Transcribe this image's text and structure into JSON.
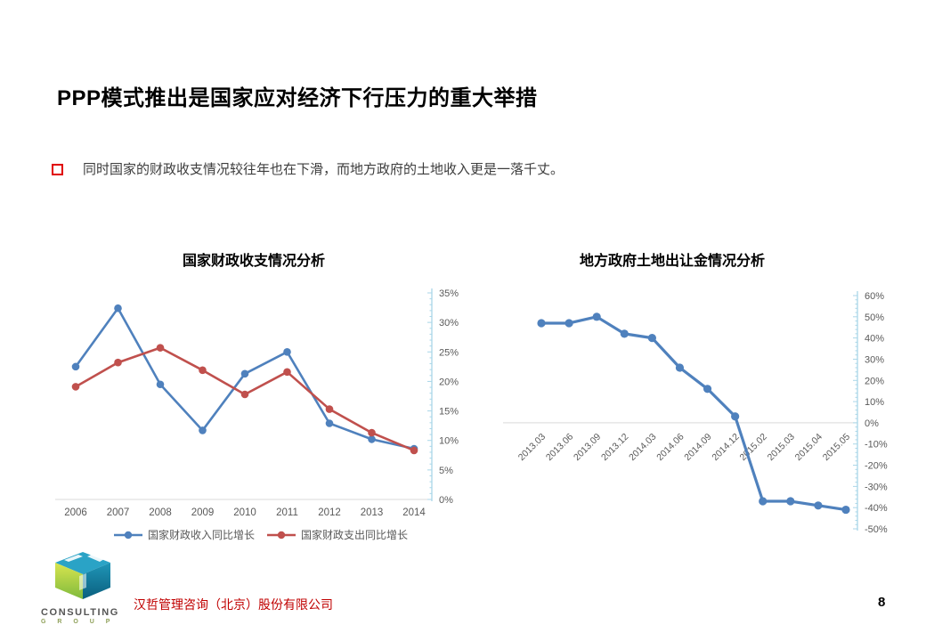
{
  "slide": {
    "title": "PPP模式推出是国家应对经济下行压力的重大举措",
    "bullet": "同时国家的财政收支情况较往年也在下滑，而地方政府的土地收入更是一落千丈。",
    "page_number": "8"
  },
  "footer": {
    "logo_line1": "CONSULTING",
    "logo_line2": "G R O U P",
    "company": "汉哲管理咨询（北京）股份有限公司"
  },
  "colors": {
    "series_blue": "#4F81BD",
    "series_red": "#C0504D",
    "axis_line": "#A9D6E8",
    "tick_label": "#595959",
    "gridline": "#D9D9D9"
  },
  "chart_data": [
    {
      "type": "line",
      "title": "国家财政收支情况分析",
      "categories": [
        "2006",
        "2007",
        "2008",
        "2009",
        "2010",
        "2011",
        "2012",
        "2013",
        "2014"
      ],
      "series": [
        {
          "name": "国家财政收入同比增长",
          "color": "#4F81BD",
          "values": [
            22.5,
            32.4,
            19.5,
            11.7,
            21.3,
            25.0,
            12.9,
            10.2,
            8.6
          ]
        },
        {
          "name": "国家财政支出同比增长",
          "color": "#C0504D",
          "values": [
            19.1,
            23.2,
            25.7,
            21.9,
            17.8,
            21.6,
            15.3,
            11.3,
            8.3
          ]
        }
      ],
      "xlabel": "",
      "ylabel": "",
      "ylim": [
        0,
        35
      ],
      "ytick_step": 5,
      "yticks": [
        "0%",
        "5%",
        "10%",
        "15%",
        "20%",
        "25%",
        "30%",
        "35%"
      ],
      "yaxis_side": "right",
      "legend_position": "bottom",
      "grid": false
    },
    {
      "type": "line",
      "title": "地方政府土地出让金情况分析",
      "categories": [
        "2013.03",
        "2013.06",
        "2013.09",
        "2013.12",
        "2014.03",
        "2014.06",
        "2014.09",
        "2014.12",
        "2015.02",
        "2015.03",
        "2015.04",
        "2015.05"
      ],
      "series": [
        {
          "color": "#4F81BD",
          "values": [
            47,
            47,
            50,
            42,
            40,
            26,
            16,
            3,
            -37,
            -37,
            -39,
            -41
          ]
        }
      ],
      "xlabel": "",
      "ylabel": "",
      "ylim": [
        -50,
        60
      ],
      "ytick_step": 10,
      "yticks": [
        "-50%",
        "-40%",
        "-30%",
        "-20%",
        "-10%",
        "0%",
        "10%",
        "20%",
        "30%",
        "40%",
        "50%",
        "60%"
      ],
      "yaxis_side": "right",
      "legend_position": "none",
      "grid": false,
      "xlabel_rotation": -45
    }
  ]
}
